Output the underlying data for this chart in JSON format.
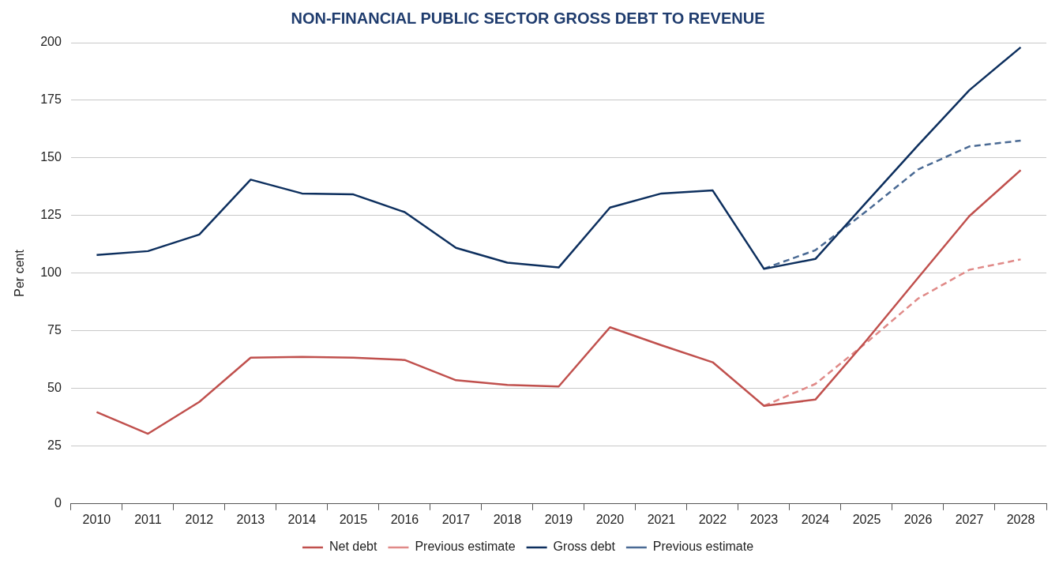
{
  "chart_data": {
    "type": "line",
    "title": "NON-FINANCIAL PUBLIC SECTOR GROSS DEBT TO REVENUE",
    "ylabel": "Per cent",
    "categories": [
      "2010",
      "2011",
      "2012",
      "2013",
      "2014",
      "2015",
      "2016",
      "2017",
      "2018",
      "2019",
      "2020",
      "2021",
      "2022",
      "2023",
      "2024",
      "2025",
      "2026",
      "2027",
      "2028"
    ],
    "series": [
      {
        "name": "Net debt",
        "color": "#c0504d",
        "line_style": "solid",
        "values": [
          39.8,
          30.4,
          44.2,
          63.4,
          63.7,
          63.4,
          62.4,
          53.6,
          51.6,
          50.9,
          76.6,
          68.8,
          61.4,
          42.5,
          45.2,
          71,
          98,
          124.8,
          144.7
        ]
      },
      {
        "name": "Previous estimate",
        "color": "#e08a88",
        "line_style": "dashed",
        "values": [
          null,
          null,
          null,
          null,
          null,
          null,
          null,
          null,
          null,
          null,
          null,
          null,
          null,
          42.5,
          52,
          70,
          89,
          101.5,
          106
        ]
      },
      {
        "name": "Gross debt",
        "color": "#0d2f5e",
        "line_style": "solid",
        "values": [
          107.9,
          109.6,
          116.8,
          140.6,
          134.6,
          134.2,
          126.5,
          111,
          104.6,
          102.5,
          128.5,
          134.6,
          135.9,
          101.9,
          106.2,
          130.9,
          155.5,
          179.4,
          198
        ]
      },
      {
        "name": "Previous estimate",
        "color": "#4a6a94",
        "line_style": "dashed",
        "values": [
          null,
          null,
          null,
          null,
          null,
          null,
          null,
          null,
          null,
          null,
          null,
          null,
          null,
          102,
          110,
          127,
          145,
          155,
          157.5
        ]
      }
    ],
    "ylim": [
      0,
      200
    ],
    "yticks": [
      0,
      25,
      50,
      75,
      100,
      125,
      150,
      175,
      200
    ],
    "grid": "y",
    "legend": "bottom",
    "marker": "none"
  }
}
